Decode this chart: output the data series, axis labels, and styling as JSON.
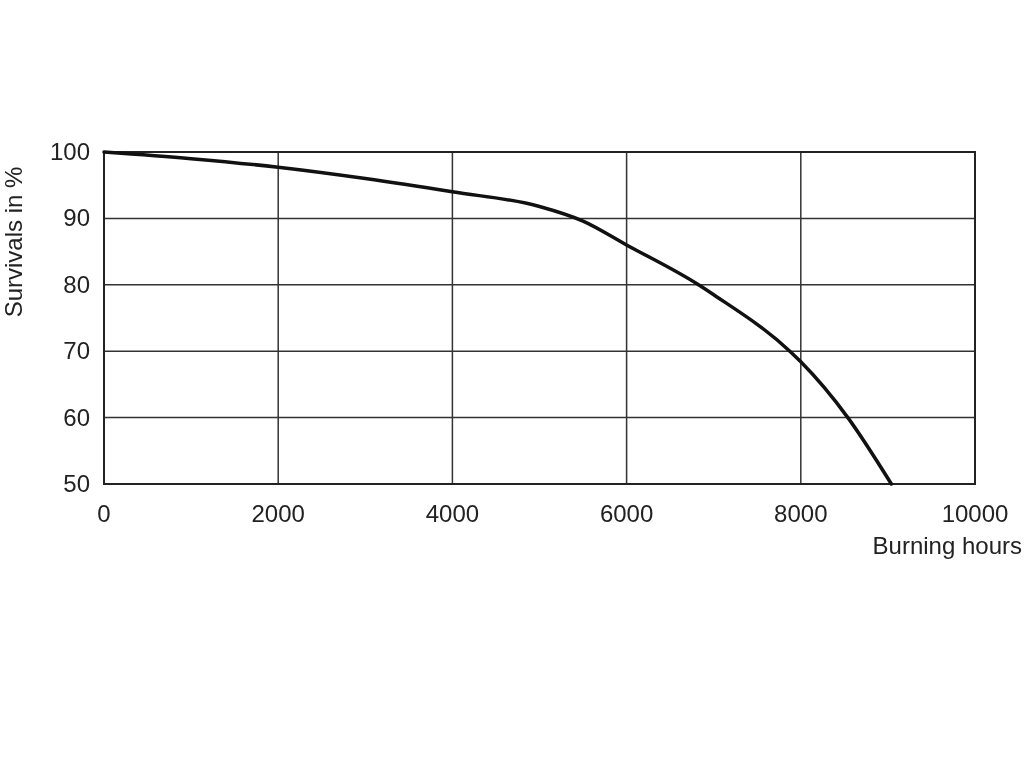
{
  "chart_data": {
    "type": "line",
    "xlabel": "Burning hours",
    "ylabel": "Survivals in %",
    "x": [
      0,
      1000,
      2000,
      3000,
      4000,
      5000,
      5500,
      6000,
      6826,
      7000,
      7874,
      8000,
      8540,
      9040
    ],
    "series": [
      {
        "color": "#111111",
        "values": [
          100,
          99,
          97.7,
          96,
          94,
          91.8,
          89.6,
          86,
          80,
          78.5,
          70,
          68.4,
          60,
          50
        ]
      }
    ],
    "xlim": [
      0,
      10000
    ],
    "xticks": [
      0,
      2000,
      4000,
      6000,
      8000,
      10000
    ],
    "ylim": [
      50,
      100
    ],
    "yticks": [
      50,
      60,
      70,
      80,
      90,
      100
    ],
    "grid": true,
    "marker": "none",
    "line_style": "solid"
  }
}
